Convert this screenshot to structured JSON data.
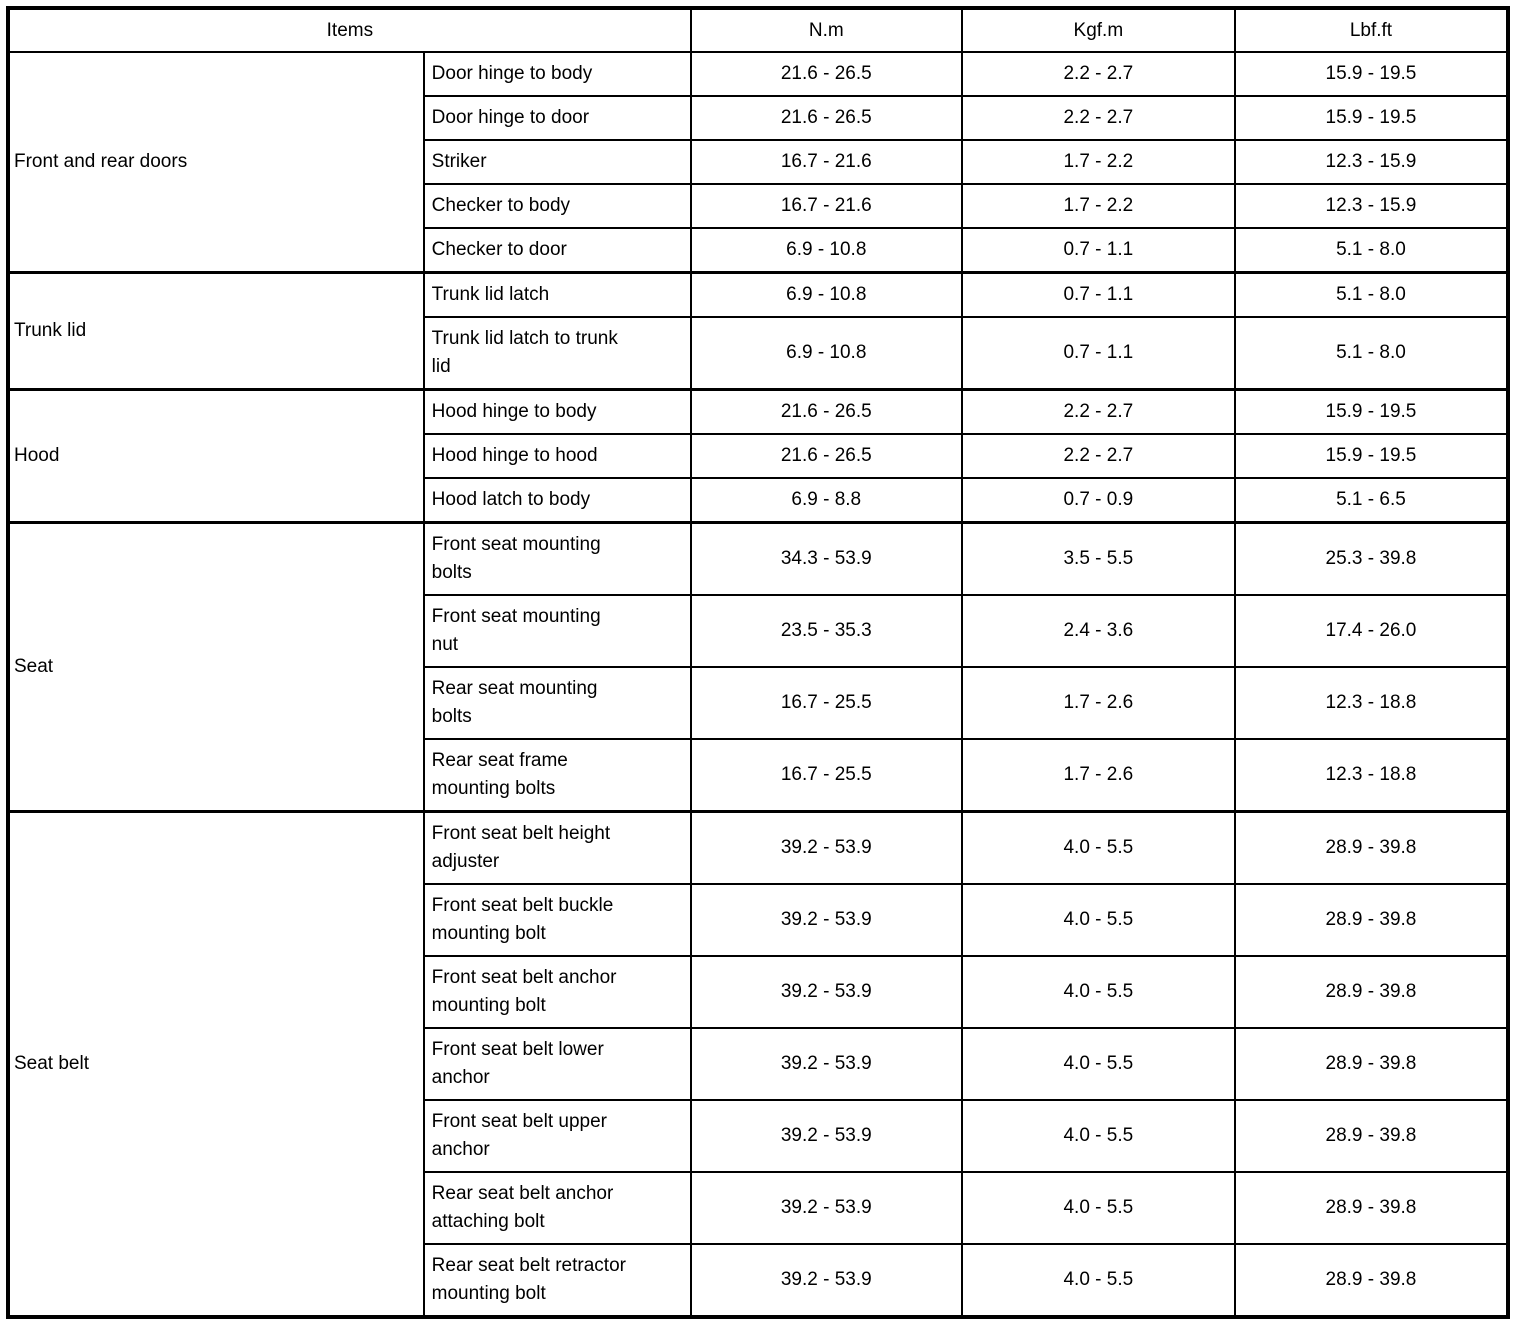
{
  "header": {
    "items_label": "Items",
    "unit_columns": [
      "N.m",
      "Kgf.m",
      "Lbf.ft"
    ]
  },
  "groups": [
    {
      "category": "Front and rear doors",
      "rows": [
        {
          "item": "Door hinge to body",
          "values": [
            "21.6 - 26.5",
            "2.2 - 2.7",
            "15.9 - 19.5"
          ]
        },
        {
          "item": "Door hinge to door",
          "values": [
            "21.6 - 26.5",
            "2.2 - 2.7",
            "15.9 - 19.5"
          ]
        },
        {
          "item": "Striker",
          "values": [
            "16.7 - 21.6",
            "1.7 - 2.2",
            "12.3 - 15.9"
          ]
        },
        {
          "item": "Checker to body",
          "values": [
            "16.7 - 21.6",
            "1.7 - 2.2",
            "12.3 - 15.9"
          ]
        },
        {
          "item": "Checker to door",
          "values": [
            "6.9 - 10.8",
            "0.7 - 1.1",
            "5.1 - 8.0"
          ]
        }
      ]
    },
    {
      "category": "Trunk lid",
      "rows": [
        {
          "item": "Trunk lid latch",
          "values": [
            "6.9 - 10.8",
            "0.7 - 1.1",
            "5.1 - 8.0"
          ]
        },
        {
          "item": "Trunk lid latch to trunk\nlid",
          "values": [
            "6.9 - 10.8",
            "0.7 - 1.1",
            "5.1 - 8.0"
          ]
        }
      ]
    },
    {
      "category": "Hood",
      "rows": [
        {
          "item": "Hood hinge to body",
          "values": [
            "21.6 - 26.5",
            "2.2 - 2.7",
            "15.9 - 19.5"
          ]
        },
        {
          "item": "Hood hinge to hood",
          "values": [
            "21.6 - 26.5",
            "2.2 - 2.7",
            "15.9 - 19.5"
          ]
        },
        {
          "item": "Hood latch to body",
          "values": [
            "6.9 - 8.8",
            "0.7 - 0.9",
            "5.1 - 6.5"
          ]
        }
      ]
    },
    {
      "category": "Seat",
      "rows": [
        {
          "item": "Front seat mounting\nbolts",
          "values": [
            "34.3 - 53.9",
            "3.5 - 5.5",
            "25.3 - 39.8"
          ]
        },
        {
          "item": "Front seat mounting\nnut",
          "values": [
            "23.5 - 35.3",
            "2.4 - 3.6",
            "17.4 - 26.0"
          ]
        },
        {
          "item": "Rear seat mounting\nbolts",
          "values": [
            "16.7 - 25.5",
            "1.7 - 2.6",
            "12.3 - 18.8"
          ]
        },
        {
          "item": "Rear seat frame\nmounting bolts",
          "values": [
            "16.7 - 25.5",
            "1.7 - 2.6",
            "12.3 - 18.8"
          ]
        }
      ]
    },
    {
      "category": "Seat belt",
      "rows": [
        {
          "item": "Front seat belt height\nadjuster",
          "values": [
            "39.2 - 53.9",
            "4.0 - 5.5",
            "28.9 - 39.8"
          ]
        },
        {
          "item": "Front seat belt buckle\nmounting bolt",
          "values": [
            "39.2 - 53.9",
            "4.0 - 5.5",
            "28.9 - 39.8"
          ]
        },
        {
          "item": "Front seat belt anchor\nmounting bolt",
          "values": [
            "39.2 - 53.9",
            "4.0 - 5.5",
            "28.9 - 39.8"
          ]
        },
        {
          "item": "Front seat belt lower\nanchor",
          "values": [
            "39.2 - 53.9",
            "4.0 - 5.5",
            "28.9 - 39.8"
          ]
        },
        {
          "item": "Front seat belt upper\nanchor",
          "values": [
            "39.2 - 53.9",
            "4.0 - 5.5",
            "28.9 - 39.8"
          ]
        },
        {
          "item": "Rear seat belt anchor\nattaching bolt",
          "values": [
            "39.2 - 53.9",
            "4.0 - 5.5",
            "28.9 - 39.8"
          ]
        },
        {
          "item": "Rear seat belt retractor\nmounting bolt",
          "values": [
            "39.2 - 53.9",
            "4.0 - 5.5",
            "28.9 - 39.8"
          ]
        }
      ]
    }
  ],
  "colors": {
    "border": "#000000",
    "text": "#000000",
    "background": "#ffffff"
  }
}
